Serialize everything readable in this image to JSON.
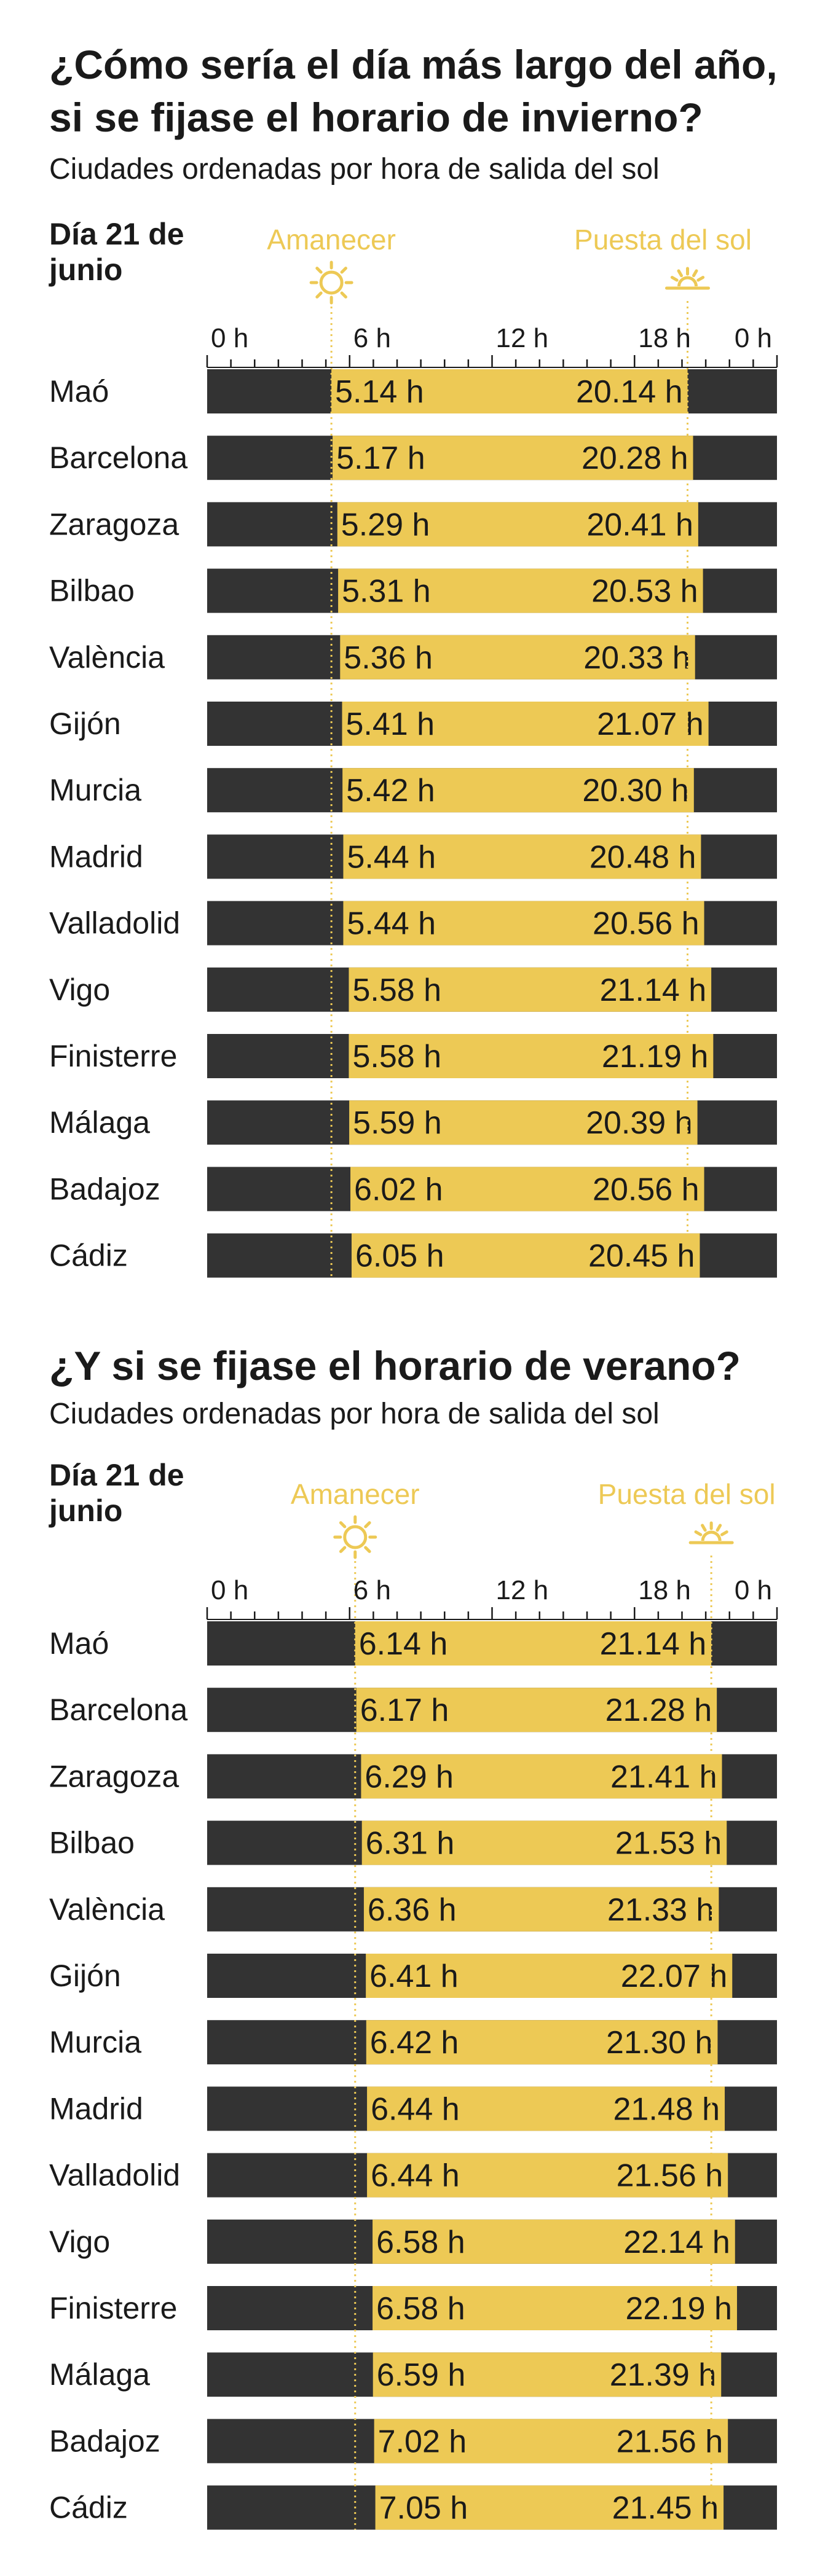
{
  "colors": {
    "night": "#333333",
    "day": "#edc955",
    "accent": "#edc955",
    "text": "#1a1a1a"
  },
  "chart_data": [
    {
      "type": "bar",
      "title": "¿Cómo sería el día más largo del año, si se fijase el horario de invierno?",
      "subtitle": "Ciudades ordenadas por hora de salida del sol",
      "day_label": "Día 21 de junio",
      "sunrise_label": "Amanecer",
      "sunset_label": "Puesta del sol",
      "x_ticks": [
        "0 h",
        "6 h",
        "12 h",
        "18 h",
        "0 h"
      ],
      "xlim": [
        0,
        24
      ],
      "rows": [
        {
          "city": "Maó",
          "sunrise": 5.14,
          "sunset": 20.14,
          "sunrise_label": "5.14 h",
          "sunset_label": "20.14 h"
        },
        {
          "city": "Barcelona",
          "sunrise": 5.17,
          "sunset": 20.28,
          "sunrise_label": "5.17 h",
          "sunset_label": "20.28 h"
        },
        {
          "city": "Zaragoza",
          "sunrise": 5.29,
          "sunset": 20.41,
          "sunrise_label": "5.29 h",
          "sunset_label": "20.41 h"
        },
        {
          "city": "Bilbao",
          "sunrise": 5.31,
          "sunset": 20.53,
          "sunrise_label": "5.31 h",
          "sunset_label": "20.53 h"
        },
        {
          "city": "València",
          "sunrise": 5.36,
          "sunset": 20.33,
          "sunrise_label": "5.36 h",
          "sunset_label": "20.33 h"
        },
        {
          "city": "Gijón",
          "sunrise": 5.41,
          "sunset": 21.07,
          "sunrise_label": "5.41 h",
          "sunset_label": "21.07 h"
        },
        {
          "city": "Murcia",
          "sunrise": 5.42,
          "sunset": 20.3,
          "sunrise_label": "5.42 h",
          "sunset_label": "20.30 h"
        },
        {
          "city": "Madrid",
          "sunrise": 5.44,
          "sunset": 20.48,
          "sunrise_label": "5.44 h",
          "sunset_label": "20.48 h"
        },
        {
          "city": "Valladolid",
          "sunrise": 5.44,
          "sunset": 20.56,
          "sunrise_label": "5.44 h",
          "sunset_label": "20.56 h"
        },
        {
          "city": "Vigo",
          "sunrise": 5.58,
          "sunset": 21.14,
          "sunrise_label": "5.58 h",
          "sunset_label": "21.14 h"
        },
        {
          "city": "Finisterre",
          "sunrise": 5.58,
          "sunset": 21.19,
          "sunrise_label": "5.58 h",
          "sunset_label": "21.19 h"
        },
        {
          "city": "Málaga",
          "sunrise": 5.59,
          "sunset": 20.39,
          "sunrise_label": "5.59 h",
          "sunset_label": "20.39 h"
        },
        {
          "city": "Badajoz",
          "sunrise": 6.02,
          "sunset": 20.56,
          "sunrise_label": "6.02 h",
          "sunset_label": "20.56 h"
        },
        {
          "city": "Cádiz",
          "sunrise": 6.05,
          "sunset": 20.45,
          "sunrise_label": "6.05 h",
          "sunset_label": "20.45 h"
        }
      ]
    },
    {
      "type": "bar",
      "title": "¿Y si se fijase el horario de verano?",
      "subtitle": "Ciudades ordenadas por hora de salida del sol",
      "day_label": "Día 21 de junio",
      "sunrise_label": "Amanecer",
      "sunset_label": "Puesta del sol",
      "x_ticks": [
        "0 h",
        "6 h",
        "12 h",
        "18 h",
        "0 h"
      ],
      "xlim": [
        0,
        24
      ],
      "rows": [
        {
          "city": "Maó",
          "sunrise": 6.14,
          "sunset": 21.14,
          "sunrise_label": "6.14 h",
          "sunset_label": "21.14 h"
        },
        {
          "city": "Barcelona",
          "sunrise": 6.17,
          "sunset": 21.28,
          "sunrise_label": "6.17 h",
          "sunset_label": "21.28 h"
        },
        {
          "city": "Zaragoza",
          "sunrise": 6.29,
          "sunset": 21.41,
          "sunrise_label": "6.29 h",
          "sunset_label": "21.41 h"
        },
        {
          "city": "Bilbao",
          "sunrise": 6.31,
          "sunset": 21.53,
          "sunrise_label": "6.31 h",
          "sunset_label": "21.53 h"
        },
        {
          "city": "València",
          "sunrise": 6.36,
          "sunset": 21.33,
          "sunrise_label": "6.36 h",
          "sunset_label": "21.33 h"
        },
        {
          "city": "Gijón",
          "sunrise": 6.41,
          "sunset": 22.07,
          "sunrise_label": "6.41 h",
          "sunset_label": "22.07 h"
        },
        {
          "city": "Murcia",
          "sunrise": 6.42,
          "sunset": 21.3,
          "sunrise_label": "6.42 h",
          "sunset_label": "21.30 h"
        },
        {
          "city": "Madrid",
          "sunrise": 6.44,
          "sunset": 21.48,
          "sunrise_label": "6.44 h",
          "sunset_label": "21.48 h"
        },
        {
          "city": "Valladolid",
          "sunrise": 6.44,
          "sunset": 21.56,
          "sunrise_label": "6.44 h",
          "sunset_label": "21.56 h"
        },
        {
          "city": "Vigo",
          "sunrise": 6.58,
          "sunset": 22.14,
          "sunrise_label": "6.58 h",
          "sunset_label": "22.14 h"
        },
        {
          "city": "Finisterre",
          "sunrise": 6.58,
          "sunset": 22.19,
          "sunrise_label": "6.58 h",
          "sunset_label": "22.19 h"
        },
        {
          "city": "Málaga",
          "sunrise": 6.59,
          "sunset": 21.39,
          "sunrise_label": "6.59 h",
          "sunset_label": "21.39 h"
        },
        {
          "city": "Badajoz",
          "sunrise": 7.02,
          "sunset": 21.56,
          "sunrise_label": "7.02 h",
          "sunset_label": "21.56 h"
        },
        {
          "city": "Cádiz",
          "sunrise": 7.05,
          "sunset": 21.45,
          "sunrise_label": "7.05 h",
          "sunset_label": "21.45 h"
        }
      ]
    }
  ]
}
